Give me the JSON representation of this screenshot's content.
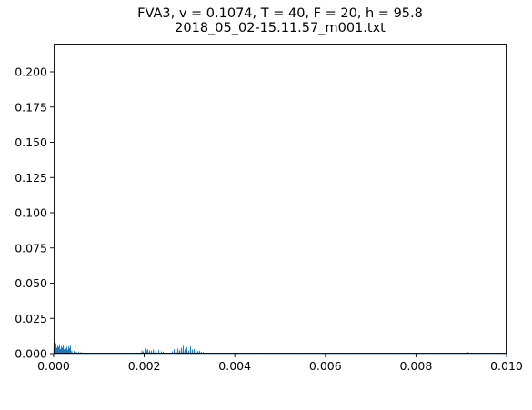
{
  "chart_data": {
    "type": "line",
    "title": "FVA3, v = 0.1074, T = 40, F = 20, h = 95.8",
    "subtitle": "2018_05_02-15.11.57_m001.txt",
    "xlabel": "",
    "ylabel": "",
    "xlim": [
      0,
      0.01
    ],
    "ylim": [
      0,
      0.22
    ],
    "grid": false,
    "x_ticks": [
      0.0,
      0.002,
      0.004,
      0.006,
      0.008,
      0.01
    ],
    "x_tick_labels": [
      "0.000",
      "0.002",
      "0.004",
      "0.006",
      "0.008",
      "0.010"
    ],
    "y_ticks": [
      0.0,
      0.025,
      0.05,
      0.075,
      0.1,
      0.125,
      0.15,
      0.175,
      0.2
    ],
    "y_tick_labels": [
      "0.000",
      "0.025",
      "0.050",
      "0.075",
      "0.100",
      "0.125",
      "0.150",
      "0.175",
      "0.200"
    ],
    "series": [
      {
        "color": "#1f77b4",
        "x": [
          1e-05,
          3e-05,
          5e-05,
          7e-05,
          9e-05,
          0.00011,
          0.00013,
          0.00015,
          0.00017,
          0.00019,
          0.00021,
          0.00023,
          0.00025,
          0.00027,
          0.00029,
          0.00031,
          0.00033,
          0.00035,
          0.00037,
          0.0004,
          0.00045,
          0.0005,
          0.00055,
          0.0006,
          0.00065,
          0.0007,
          0.00195,
          0.00198,
          0.00202,
          0.00205,
          0.00208,
          0.00212,
          0.00216,
          0.0022,
          0.00225,
          0.00232,
          0.00238,
          0.00242,
          0.00262,
          0.00266,
          0.0027,
          0.00274,
          0.00278,
          0.00282,
          0.00286,
          0.0029,
          0.00294,
          0.00298,
          0.00302,
          0.00306,
          0.0031,
          0.00314,
          0.00318,
          0.00322,
          0.00326,
          0.0033,
          0.0038,
          0.0045,
          0.0055,
          0.0065,
          0.0075,
          0.0085,
          0.00915,
          0.0095
        ],
        "y": [
          0.0075,
          0.006,
          0.0072,
          0.004,
          0.0055,
          0.0045,
          0.0065,
          0.003,
          0.005,
          0.0042,
          0.0058,
          0.0028,
          0.0062,
          0.0035,
          0.0048,
          0.0025,
          0.005,
          0.0038,
          0.0055,
          0.002,
          0.0018,
          0.0012,
          0.0009,
          0.0008,
          0.0005,
          0.0004,
          0.002,
          0.0015,
          0.0035,
          0.0025,
          0.003,
          0.0022,
          0.002,
          0.0028,
          0.0018,
          0.0025,
          0.0015,
          0.0012,
          0.0015,
          0.003,
          0.002,
          0.0035,
          0.0025,
          0.004,
          0.0055,
          0.003,
          0.0045,
          0.002,
          0.005,
          0.0028,
          0.0032,
          0.0022,
          0.0018,
          0.002,
          0.0012,
          0.0008,
          0.0004,
          0.0003,
          0.0002,
          0.0002,
          0.0002,
          0.0002,
          0.0008,
          0.0001
        ]
      }
    ]
  }
}
